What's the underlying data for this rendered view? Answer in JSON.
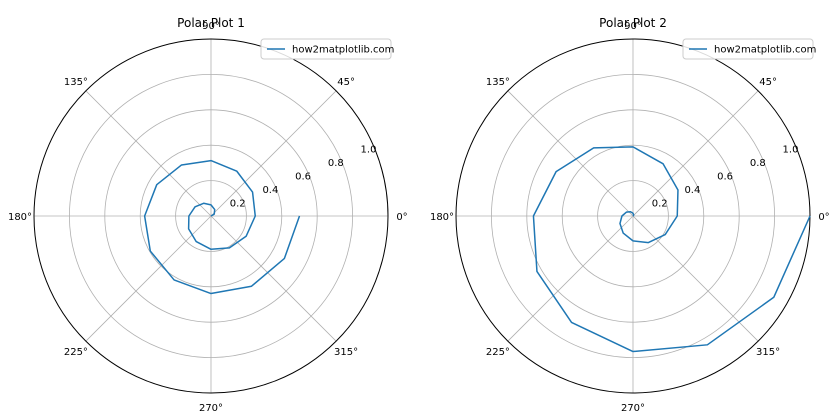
{
  "chart_data": [
    {
      "type": "line",
      "projection": "polar",
      "title": "Polar Plot 1",
      "angle_ticks": [
        "0°",
        "45°",
        "90°",
        "135°",
        "180°",
        "225°",
        "270°",
        "315°"
      ],
      "radial_ticks": [
        "0.2",
        "0.4",
        "0.6",
        "0.8",
        "1.0"
      ],
      "rlim": [
        0,
        1.0
      ],
      "grid": true,
      "legend": {
        "position": "upper-right",
        "entries": [
          "how2matplotlib.com"
        ]
      },
      "series": [
        {
          "name": "how2matplotlib.com",
          "color": "#1f77b4",
          "theta_degrees": [
            0,
            30,
            60,
            90,
            120,
            150,
            180,
            210,
            240,
            270,
            300,
            330,
            360,
            390,
            420,
            450,
            480,
            510,
            540,
            570,
            600,
            630,
            660,
            690,
            720
          ],
          "r": [
            0.0,
            0.021,
            0.042,
            0.063,
            0.083,
            0.104,
            0.125,
            0.146,
            0.167,
            0.188,
            0.208,
            0.229,
            0.25,
            0.271,
            0.292,
            0.313,
            0.333,
            0.354,
            0.375,
            0.396,
            0.417,
            0.438,
            0.458,
            0.479,
            0.5
          ]
        }
      ]
    },
    {
      "type": "line",
      "projection": "polar",
      "title": "Polar Plot 2",
      "angle_ticks": [
        "0°",
        "45°",
        "90°",
        "135°",
        "180°",
        "225°",
        "270°",
        "315°"
      ],
      "radial_ticks": [
        "0.2",
        "0.4",
        "0.6",
        "0.8",
        "1.0"
      ],
      "rlim": [
        0,
        1.0
      ],
      "grid": true,
      "legend": {
        "position": "upper-right",
        "entries": [
          "how2matplotlib.com"
        ]
      },
      "series": [
        {
          "name": "how2matplotlib.com",
          "color": "#1f77b4",
          "theta_degrees": [
            0,
            30,
            60,
            90,
            120,
            150,
            180,
            210,
            240,
            270,
            300,
            330,
            360,
            390,
            420,
            450,
            480,
            510,
            540,
            570,
            600,
            630,
            660,
            690,
            720
          ],
          "r": [
            0.0,
            0.0017,
            0.0069,
            0.0156,
            0.0278,
            0.0434,
            0.0625,
            0.0851,
            0.1111,
            0.1406,
            0.1736,
            0.2101,
            0.25,
            0.2934,
            0.3403,
            0.3906,
            0.4444,
            0.5017,
            0.5625,
            0.6267,
            0.6944,
            0.7656,
            0.8403,
            0.9184,
            1.0
          ]
        }
      ]
    }
  ]
}
